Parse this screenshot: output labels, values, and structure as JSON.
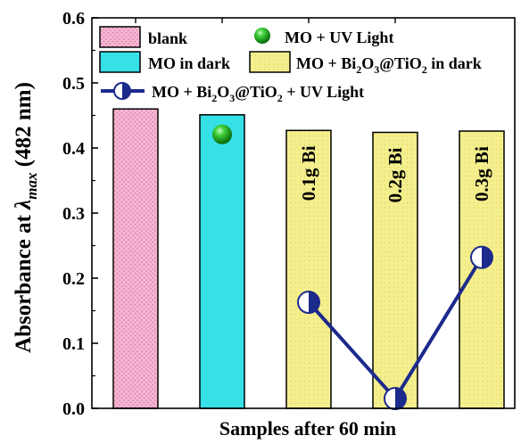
{
  "chart_data": {
    "type": "bar",
    "xlabel": "Samples after 60 min",
    "ylabel_prefix": "Absorbance at ",
    "ylabel_lambda": "λ",
    "ylabel_sub": "max",
    "ylabel_suffix": " (482 nm)",
    "ylim": [
      0.0,
      0.6
    ],
    "yticks": [
      "0.0",
      "0.1",
      "0.2",
      "0.3",
      "0.4",
      "0.5",
      "0.6"
    ],
    "ytick_values": [
      0.0,
      0.1,
      0.2,
      0.3,
      0.4,
      0.5,
      0.6
    ],
    "bars": [
      {
        "series": "blank",
        "value": 0.46,
        "label": ""
      },
      {
        "series": "MO in dark",
        "value": 0.451,
        "label": ""
      },
      {
        "series": "MO + Bi2O3@TiO2 in dark",
        "value": 0.427,
        "label": "0.1g Bi"
      },
      {
        "series": "MO + Bi2O3@TiO2 in dark",
        "value": 0.424,
        "label": "0.2g Bi"
      },
      {
        "series": "MO + Bi2O3@TiO2 in dark",
        "value": 0.426,
        "label": "0.3g Bi"
      }
    ],
    "uv_point": {
      "series": "MO + UV Light",
      "x_index": 1,
      "value": 0.421
    },
    "uv_catalyst_series": {
      "name": "MO + Bi2O3@TiO2 + UV Light",
      "x_index": [
        2,
        3,
        4
      ],
      "values": [
        0.163,
        0.015,
        0.232
      ]
    },
    "legend": {
      "blank": "blank",
      "mo_dark": "MO in dark",
      "mo_uv": "MO + UV Light",
      "cat_dark_a": "MO + Bi",
      "cat_dark_b": "2",
      "cat_dark_c": "O",
      "cat_dark_d": "3",
      "cat_dark_e": "@TiO",
      "cat_dark_f": "2",
      "cat_dark_g": " in dark",
      "cat_uv_a": "MO + Bi",
      "cat_uv_b": "2",
      "cat_uv_c": "O",
      "cat_uv_d": "3",
      "cat_uv_e": "@TiO",
      "cat_uv_f": "2",
      "cat_uv_g": " + UV Light"
    },
    "colors": {
      "blank": "#f4b6d2",
      "blank_dot": "#d9709f",
      "mo_dark": "#35e0e6",
      "cat_dark": "#f4ef8c",
      "cat_dark_hatch": "#d8d06a",
      "line": "#1c2a8c",
      "sphere": "#1aa81a"
    },
    "legend_position": "top",
    "grid": false
  }
}
